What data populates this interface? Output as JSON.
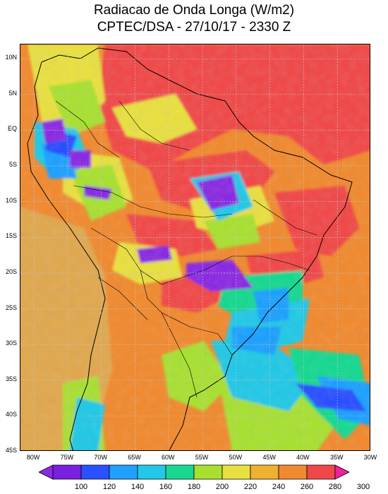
{
  "header": {
    "title_line1": "Radiacao de Onda Longa (W/m2)",
    "title_line2": "CPTEC/DSA - 27/10/17 - 2330 Z"
  },
  "axes": {
    "lat_labels": [
      "10N",
      "5N",
      "EQ",
      "5S",
      "10S",
      "15S",
      "20S",
      "25S",
      "30S",
      "35S",
      "40S",
      "45S"
    ],
    "lat_values": [
      10,
      5,
      0,
      -5,
      -10,
      -15,
      -20,
      -25,
      -30,
      -35,
      -40,
      -45
    ],
    "lon_labels": [
      "80W",
      "75W",
      "70W",
      "65W",
      "60W",
      "55W",
      "50W",
      "45W",
      "40W",
      "35W",
      "30W"
    ],
    "lon_values": [
      -80,
      -75,
      -70,
      -65,
      -60,
      -55,
      -50,
      -45,
      -40,
      -35,
      -30
    ],
    "lat_range": [
      -45,
      12
    ],
    "lon_range": [
      -82,
      -30
    ]
  },
  "colorbar": {
    "labels": [
      "100",
      "120",
      "140",
      "160",
      "180",
      "200",
      "220",
      "240",
      "260",
      "280",
      "300"
    ],
    "colors": [
      "#8a2be2",
      "#7a20e0",
      "#2a50ff",
      "#1fa0ff",
      "#22c8e6",
      "#18d890",
      "#a8e030",
      "#e8e040",
      "#f0b030",
      "#f08a30",
      "#f04848",
      "#f020a0"
    ]
  },
  "map": {
    "background_color": "#f08a30",
    "grid": true,
    "colors": {
      "warm_orange": "#f08a30",
      "hot_red": "#f04848",
      "sand": "#e0a850",
      "yellow": "#e8e040",
      "green": "#a8e030",
      "teal": "#18d890",
      "cyan": "#22c8e6",
      "blue": "#1fa0ff",
      "deep_blue": "#2a50ff",
      "purple": "#8a2be2"
    }
  }
}
